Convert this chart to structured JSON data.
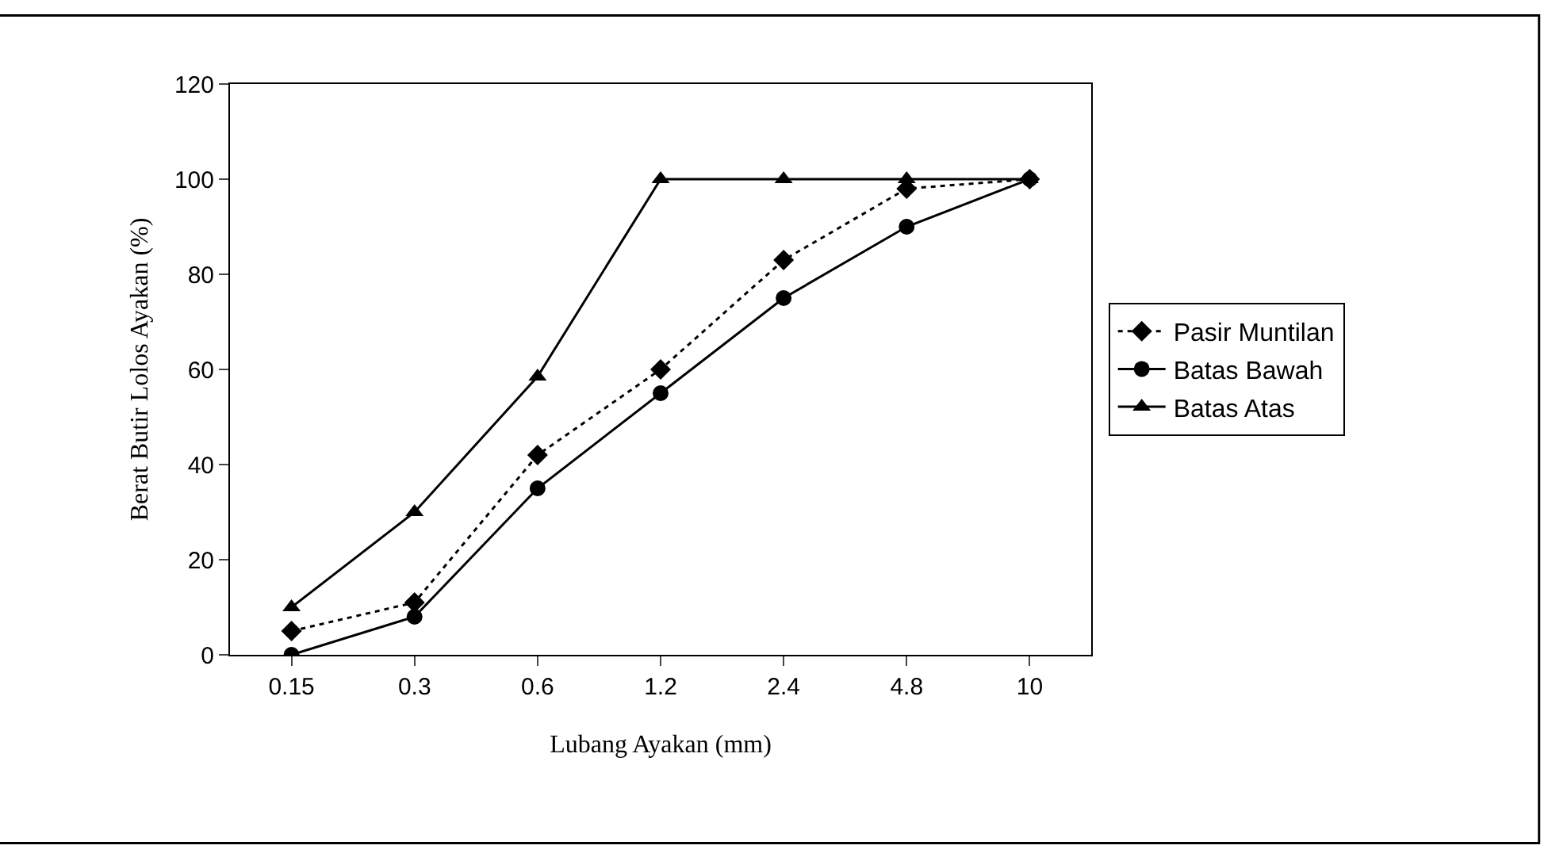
{
  "chart_data": {
    "type": "line",
    "xlabel": "Lubang Ayakan (mm)",
    "ylabel": "Berat Butir Lolos Ayakan (%)",
    "categories": [
      "0.15",
      "0.3",
      "0.6",
      "1.2",
      "2.4",
      "4.8",
      "10"
    ],
    "series": [
      {
        "name": "Pasir Muntilan",
        "color": "#000000",
        "marker": "diamond",
        "line_style": "dotted",
        "values": [
          5,
          11,
          42,
          60,
          83,
          98,
          100
        ]
      },
      {
        "name": "Batas Bawah",
        "color": "#000000",
        "marker": "circle",
        "line_style": "solid",
        "values": [
          0,
          8,
          35,
          55,
          75,
          90,
          100
        ]
      },
      {
        "name": "Batas Atas",
        "color": "#000000",
        "marker": "triangle",
        "line_style": "solid",
        "values": [
          10,
          30,
          58.5,
          100,
          100,
          100,
          100
        ]
      }
    ],
    "ylim": [
      0,
      120
    ],
    "yticks": [
      0,
      20,
      40,
      60,
      80,
      100,
      120
    ],
    "grid": false,
    "legend": "right"
  }
}
